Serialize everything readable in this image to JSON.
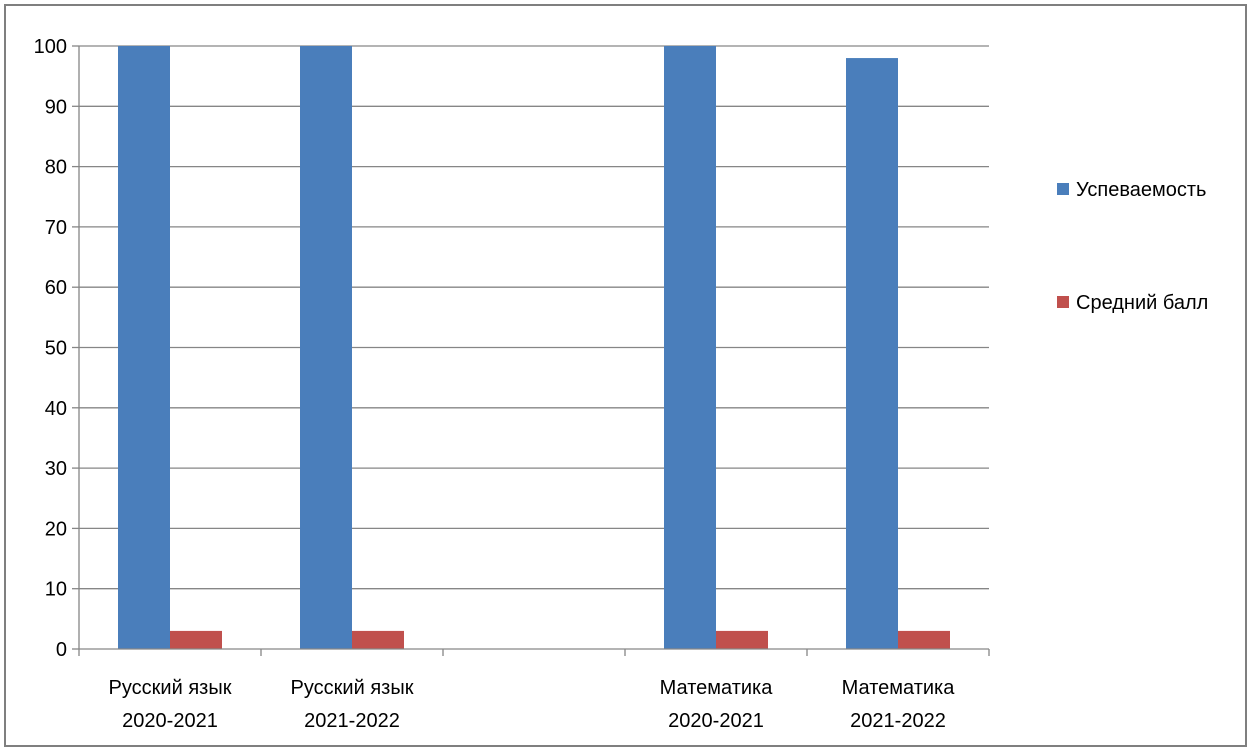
{
  "chart_data": {
    "type": "bar",
    "categories": [
      [
        "Русский язык",
        "2020-2021"
      ],
      [
        "Русский язык",
        "2021-2022"
      ],
      [
        "",
        ""
      ],
      [
        "Математика",
        "2020-2021"
      ],
      [
        "Математика",
        "2021-2022"
      ]
    ],
    "series": [
      {
        "name": "Успеваемость",
        "color": "#4a7ebb",
        "values": [
          100,
          100,
          null,
          100,
          98
        ]
      },
      {
        "name": "Средний балл",
        "color": "#c0504d",
        "values": [
          3,
          3,
          null,
          3,
          3
        ]
      }
    ],
    "ylim": [
      0,
      100
    ],
    "yticks": [
      0,
      10,
      20,
      30,
      40,
      50,
      60,
      70,
      80,
      90,
      100
    ],
    "grid": true,
    "legend_position": "right"
  }
}
